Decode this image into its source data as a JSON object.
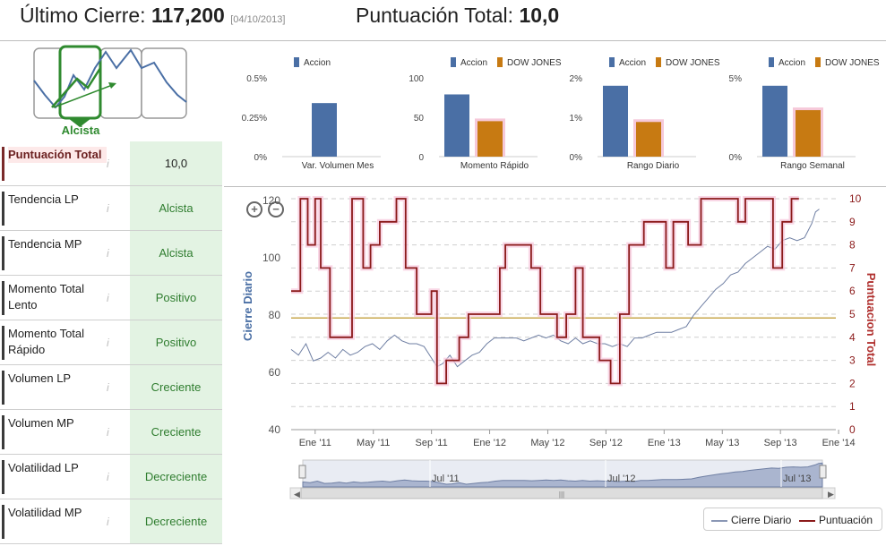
{
  "header": {
    "last_close_label": "Último Cierre:",
    "last_close_value": "117,200",
    "last_close_date": "[04/10/2013]",
    "total_score_label": "Puntuación Total:",
    "total_score_value": "10,0"
  },
  "trend": {
    "label": "Alcista"
  },
  "metrics": [
    {
      "label": "Puntuación Total",
      "value": "10,0"
    },
    {
      "label": "Tendencia LP",
      "value": "Alcista"
    },
    {
      "label": "Tendencia MP",
      "value": "Alcista"
    },
    {
      "label": "Momento Total Lento",
      "value": "Positivo"
    },
    {
      "label": "Momento Total Rápido",
      "value": "Positivo"
    },
    {
      "label": "Volumen LP",
      "value": "Creciente"
    },
    {
      "label": "Volumen MP",
      "value": "Creciente"
    },
    {
      "label": "Volatilidad LP",
      "value": "Decreciente"
    },
    {
      "label": "Volatilidad MP",
      "value": "Decreciente"
    }
  ],
  "info_glyph": "i",
  "colors": {
    "accion": "#4a6fa5",
    "dow_jones": "#c77a12",
    "close_line": "#6f7fa3",
    "score_line": "#8b1a1a",
    "ref_line": "#c8a84e",
    "green_fill": "#e3f3e3"
  },
  "chart_data": [
    {
      "type": "bar",
      "legend": [
        "Accion"
      ],
      "categories": [
        "Var. Volumen Mes"
      ],
      "series": [
        {
          "name": "Accion",
          "values": [
            0.34
          ]
        }
      ],
      "yticks": [
        "0.5%",
        "0.25%",
        "0%"
      ],
      "ylim": [
        0,
        0.5
      ]
    },
    {
      "type": "bar",
      "legend": [
        "Accion",
        "DOW JONES"
      ],
      "categories": [
        "Momento Rápido"
      ],
      "series": [
        {
          "name": "Accion",
          "values": [
            79
          ]
        },
        {
          "name": "DOW JONES",
          "values": [
            45
          ]
        }
      ],
      "yticks": [
        "100",
        "50",
        "0"
      ],
      "ylim": [
        0,
        100
      ]
    },
    {
      "type": "bar",
      "legend": [
        "Accion",
        "DOW JONES"
      ],
      "categories": [
        "Rango Diario"
      ],
      "series": [
        {
          "name": "Accion",
          "values": [
            1.8
          ]
        },
        {
          "name": "DOW JONES",
          "values": [
            0.88
          ]
        }
      ],
      "yticks": [
        "2%",
        "1%",
        "0%"
      ],
      "ylim": [
        0,
        2
      ]
    },
    {
      "type": "bar",
      "legend": [
        "Accion",
        "DOW JONES"
      ],
      "categories": [
        "Rango Semanal"
      ],
      "series": [
        {
          "name": "Accion",
          "values": [
            4.5
          ]
        },
        {
          "name": "DOW JONES",
          "values": [
            2.95
          ]
        }
      ],
      "yticks": [
        "5%",
        "0%"
      ],
      "ylim": [
        0,
        5
      ]
    },
    {
      "type": "line",
      "left_axis_label": "Cierre Diario",
      "right_axis_label": "Puntuacion Total",
      "left_ticks": [
        "40",
        "60",
        "80",
        "100",
        "120"
      ],
      "left_ylim": [
        40,
        120
      ],
      "right_ticks": [
        "0",
        "1",
        "2",
        "3",
        "4",
        "5",
        "6",
        "7",
        "8",
        "9",
        "10"
      ],
      "right_ylim": [
        0,
        10
      ],
      "x_ticks": [
        "Ene '11",
        "May '11",
        "Sep '11",
        "Ene '12",
        "May '12",
        "Sep '12",
        "Ene '13",
        "May '13",
        "Sep '13",
        "Ene '14"
      ],
      "reference_line": 79,
      "series": [
        {
          "name": "Cierre Diario",
          "axis": "left",
          "points": [
            [
              0,
              68
            ],
            [
              0.4,
              66
            ],
            [
              0.8,
              70
            ],
            [
              1.2,
              64
            ],
            [
              1.6,
              65
            ],
            [
              2,
              67
            ],
            [
              2.4,
              65
            ],
            [
              2.8,
              68
            ],
            [
              3.2,
              66
            ],
            [
              3.6,
              67
            ],
            [
              4,
              69
            ],
            [
              4.4,
              70
            ],
            [
              4.8,
              68
            ],
            [
              5.2,
              71
            ],
            [
              5.6,
              73
            ],
            [
              6,
              71
            ],
            [
              6.4,
              70
            ],
            [
              6.8,
              70
            ],
            [
              7.2,
              69
            ],
            [
              7.6,
              65
            ],
            [
              7.9,
              62
            ],
            [
              8.2,
              63
            ],
            [
              8.6,
              66
            ],
            [
              9,
              62
            ],
            [
              9.4,
              64
            ],
            [
              9.8,
              66
            ],
            [
              10.2,
              67
            ],
            [
              10.6,
              70
            ],
            [
              11,
              72
            ],
            [
              11.4,
              72
            ],
            [
              11.8,
              72
            ],
            [
              12.2,
              72
            ],
            [
              12.6,
              71
            ],
            [
              13,
              72
            ],
            [
              13.4,
              73
            ],
            [
              13.8,
              72
            ],
            [
              14.2,
              73
            ],
            [
              14.6,
              71
            ],
            [
              15,
              70
            ],
            [
              15.4,
              72
            ],
            [
              15.8,
              70
            ],
            [
              16.2,
              71
            ],
            [
              16.6,
              70
            ],
            [
              17,
              70
            ],
            [
              17.4,
              69
            ],
            [
              17.8,
              70
            ],
            [
              18.2,
              69
            ],
            [
              18.6,
              72
            ],
            [
              19,
              72
            ],
            [
              19.4,
              73
            ],
            [
              19.8,
              74
            ],
            [
              20.2,
              74
            ],
            [
              20.6,
              74
            ],
            [
              21,
              75
            ],
            [
              21.4,
              76
            ],
            [
              21.8,
              80
            ],
            [
              22.2,
              83
            ],
            [
              22.6,
              86
            ],
            [
              23,
              89
            ],
            [
              23.4,
              91
            ],
            [
              23.8,
              94
            ],
            [
              24.2,
              95
            ],
            [
              24.6,
              98
            ],
            [
              25,
              100
            ],
            [
              25.4,
              102
            ],
            [
              25.8,
              104
            ],
            [
              26.2,
              103
            ],
            [
              26.6,
              106
            ],
            [
              27,
              107
            ],
            [
              27.4,
              106
            ],
            [
              27.8,
              107
            ],
            [
              28.2,
              112
            ],
            [
              28.4,
              116
            ],
            [
              28.6,
              117
            ]
          ]
        },
        {
          "name": "Puntuación",
          "axis": "right",
          "points": [
            [
              0,
              6
            ],
            [
              0.5,
              6
            ],
            [
              0.5,
              10
            ],
            [
              0.9,
              10
            ],
            [
              0.9,
              8
            ],
            [
              1.3,
              8
            ],
            [
              1.3,
              10
            ],
            [
              1.6,
              10
            ],
            [
              1.6,
              7
            ],
            [
              2.1,
              7
            ],
            [
              2.1,
              4
            ],
            [
              3.3,
              4
            ],
            [
              3.3,
              10
            ],
            [
              3.9,
              10
            ],
            [
              3.9,
              7
            ],
            [
              4.3,
              7
            ],
            [
              4.3,
              8
            ],
            [
              4.8,
              8
            ],
            [
              4.8,
              9
            ],
            [
              5.7,
              9
            ],
            [
              5.7,
              10
            ],
            [
              6.2,
              10
            ],
            [
              6.2,
              7
            ],
            [
              6.8,
              7
            ],
            [
              6.8,
              5
            ],
            [
              7.6,
              5
            ],
            [
              7.6,
              6
            ],
            [
              7.9,
              6
            ],
            [
              7.9,
              2
            ],
            [
              8.4,
              2
            ],
            [
              8.4,
              3
            ],
            [
              9.1,
              3
            ],
            [
              9.1,
              4
            ],
            [
              9.6,
              4
            ],
            [
              9.6,
              5
            ],
            [
              11.3,
              5
            ],
            [
              11.3,
              7
            ],
            [
              11.6,
              7
            ],
            [
              11.6,
              8
            ],
            [
              13.0,
              8
            ],
            [
              13.0,
              7
            ],
            [
              13.5,
              7
            ],
            [
              13.5,
              5
            ],
            [
              14.4,
              5
            ],
            [
              14.4,
              4
            ],
            [
              14.9,
              4
            ],
            [
              14.9,
              5
            ],
            [
              15.4,
              5
            ],
            [
              15.4,
              7
            ],
            [
              15.8,
              7
            ],
            [
              15.8,
              4
            ],
            [
              16.7,
              4
            ],
            [
              16.7,
              3
            ],
            [
              17.3,
              3
            ],
            [
              17.3,
              2
            ],
            [
              17.8,
              2
            ],
            [
              17.8,
              5
            ],
            [
              18.3,
              5
            ],
            [
              18.3,
              8
            ],
            [
              19.1,
              8
            ],
            [
              19.1,
              9
            ],
            [
              20.3,
              9
            ],
            [
              20.3,
              7
            ],
            [
              20.7,
              7
            ],
            [
              20.7,
              9
            ],
            [
              21.5,
              9
            ],
            [
              21.5,
              8
            ],
            [
              22.2,
              8
            ],
            [
              22.2,
              10
            ],
            [
              24.2,
              10
            ],
            [
              24.2,
              9
            ],
            [
              24.6,
              9
            ],
            [
              24.6,
              10
            ],
            [
              26.1,
              10
            ],
            [
              26.1,
              7
            ],
            [
              26.6,
              7
            ],
            [
              26.6,
              9
            ],
            [
              27.1,
              9
            ],
            [
              27.1,
              10
            ],
            [
              27.5,
              10
            ]
          ]
        }
      ]
    },
    {
      "type": "area",
      "x_ticks": [
        "Jul '11",
        "Jul '12",
        "Jul '13"
      ]
    }
  ],
  "legend": {
    "close": "Cierre Diario",
    "score": "Puntuación"
  },
  "navigator": {
    "scroll_glyph": "|||"
  }
}
